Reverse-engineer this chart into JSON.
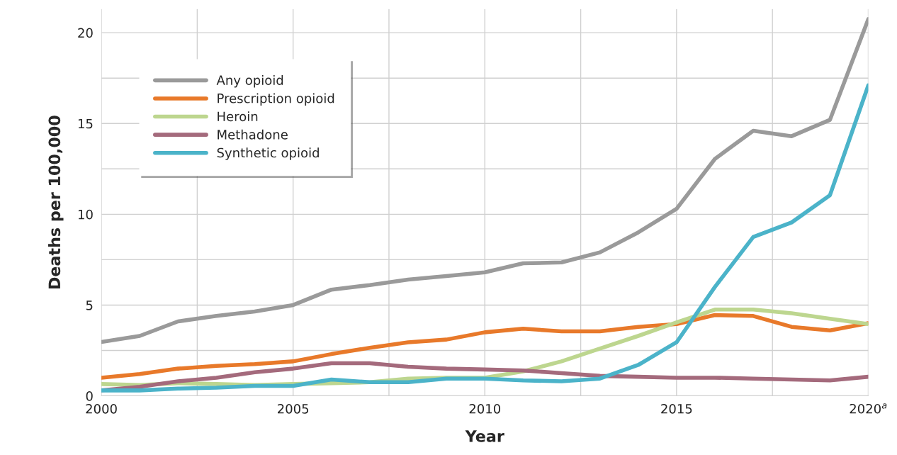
{
  "chart_data": {
    "type": "line",
    "xlabel": "Year",
    "ylabel": "Deaths per 100,000",
    "x": [
      2000,
      2001,
      2002,
      2003,
      2004,
      2005,
      2006,
      2007,
      2008,
      2009,
      2010,
      2011,
      2012,
      2013,
      2014,
      2015,
      2016,
      2017,
      2018,
      2019,
      2020
    ],
    "series": [
      {
        "name": "Any opioid",
        "color": "#9a9a9a",
        "values": [
          2.97,
          3.3,
          4.1,
          4.4,
          4.65,
          5.0,
          5.85,
          6.1,
          6.4,
          6.6,
          6.8,
          7.3,
          7.35,
          7.9,
          9.0,
          10.3,
          13.05,
          14.6,
          14.3,
          15.2,
          20.75
        ]
      },
      {
        "name": "Prescription opioid",
        "color": "#e8792a",
        "values": [
          1.0,
          1.2,
          1.5,
          1.65,
          1.75,
          1.9,
          2.3,
          2.65,
          2.95,
          3.1,
          3.5,
          3.7,
          3.55,
          3.55,
          3.8,
          3.95,
          4.45,
          4.4,
          3.8,
          3.6,
          4.0
        ]
      },
      {
        "name": "Heroin",
        "color": "#bdd68f",
        "values": [
          0.65,
          0.6,
          0.7,
          0.65,
          0.6,
          0.65,
          0.7,
          0.75,
          0.95,
          1.0,
          1.0,
          1.35,
          1.9,
          2.6,
          3.3,
          4.05,
          4.75,
          4.75,
          4.55,
          4.25,
          3.95
        ]
      },
      {
        "name": "Methadone",
        "color": "#a46a7c",
        "values": [
          0.3,
          0.5,
          0.8,
          1.0,
          1.3,
          1.5,
          1.8,
          1.8,
          1.6,
          1.5,
          1.45,
          1.4,
          1.25,
          1.1,
          1.05,
          1.0,
          1.0,
          0.95,
          0.9,
          0.85,
          1.05
        ]
      },
      {
        "name": "Synthetic opioid",
        "color": "#4bb3c9",
        "values": [
          0.3,
          0.3,
          0.4,
          0.45,
          0.55,
          0.55,
          0.9,
          0.75,
          0.75,
          0.95,
          0.95,
          0.85,
          0.8,
          0.95,
          1.7,
          2.95,
          6.0,
          8.75,
          9.55,
          11.05,
          17.1
        ]
      }
    ],
    "xlim": [
      2000,
      2020
    ],
    "xticks": [
      2000,
      {
        "value": 2002.5,
        "label": null
      },
      2005,
      {
        "value": 2007.5,
        "label": null
      },
      2010,
      {
        "value": 2012.5,
        "label": null
      },
      2015,
      {
        "value": 2017.5,
        "label": null
      },
      {
        "value": 2020,
        "label": "2020$^{a}$"
      }
    ],
    "ylim": [
      0,
      21.3
    ],
    "yticks": [
      0,
      {
        "value": 2.5,
        "label": null
      },
      5,
      {
        "value": 7.5,
        "label": null
      },
      10,
      {
        "value": 12.5,
        "label": null
      },
      15,
      {
        "value": 17.5,
        "label": null
      },
      20
    ],
    "grid": true,
    "legend": "top left",
    "marker": "none",
    "line_style": "solid"
  }
}
